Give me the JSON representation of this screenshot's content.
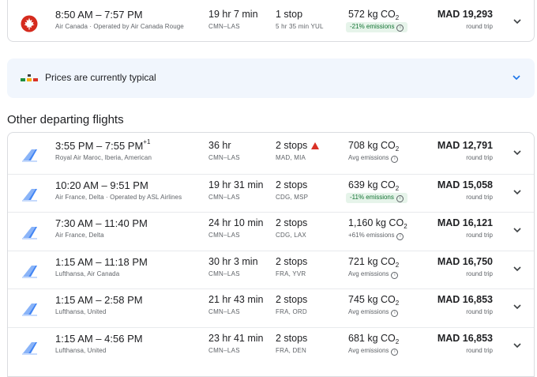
{
  "top_flight": {
    "times": "8:50 AM – 7:57 PM",
    "airline": "Air Canada · Operated by Air Canada Rouge",
    "duration": "19 hr 7 min",
    "route": "CMN–LAS",
    "stops": "1 stop",
    "via": "5 hr 35 min YUL",
    "co2": "572 kg CO",
    "co2_sub": "2",
    "emissions": "-21% emissions",
    "price": "MAD 19,293",
    "trip_type": "round trip",
    "logo_color": "#d52b1e"
  },
  "price_insight": {
    "text_prefix": "Prices are currently ",
    "text_level": "typical"
  },
  "section_title": "Other departing flights",
  "flights": [
    {
      "times": "3:55 PM – 7:55 PM",
      "sup": "+1",
      "airline": "Royal Air Maroc, Iberia, American",
      "duration": "36 hr",
      "route": "CMN–LAS",
      "stops": "2 stops",
      "warning": true,
      "via": "MAD, MIA",
      "co2": "708 kg CO",
      "co2_sub": "2",
      "emissions": "Avg emissions",
      "emissions_type": "avg",
      "price": "MAD 12,791",
      "trip_type": "round trip"
    },
    {
      "times": "10:20 AM – 9:51 PM",
      "sup": "",
      "airline": "Air France, Delta · Operated by ASL Airlines",
      "duration": "19 hr 31 min",
      "route": "CMN–LAS",
      "stops": "2 stops",
      "warning": false,
      "via": "CDG, MSP",
      "co2": "639 kg CO",
      "co2_sub": "2",
      "emissions": "-11% emissions",
      "emissions_type": "low",
      "price": "MAD 15,058",
      "trip_type": "round trip"
    },
    {
      "times": "7:30 AM – 11:40 PM",
      "sup": "",
      "airline": "Air France, Delta",
      "duration": "24 hr 10 min",
      "route": "CMN–LAS",
      "stops": "2 stops",
      "warning": false,
      "via": "CDG, LAX",
      "co2": "1,160 kg CO",
      "co2_sub": "2",
      "emissions": "+61% emissions",
      "emissions_type": "high",
      "price": "MAD 16,121",
      "trip_type": "round trip"
    },
    {
      "times": "1:15 AM – 11:18 PM",
      "sup": "",
      "airline": "Lufthansa, Air Canada",
      "duration": "30 hr 3 min",
      "route": "CMN–LAS",
      "stops": "2 stops",
      "warning": false,
      "via": "FRA, YVR",
      "co2": "721 kg CO",
      "co2_sub": "2",
      "emissions": "Avg emissions",
      "emissions_type": "avg",
      "price": "MAD 16,750",
      "trip_type": "round trip"
    },
    {
      "times": "1:15 AM – 2:58 PM",
      "sup": "",
      "airline": "Lufthansa, United",
      "duration": "21 hr 43 min",
      "route": "CMN–LAS",
      "stops": "2 stops",
      "warning": false,
      "via": "FRA, ORD",
      "co2": "745 kg CO",
      "co2_sub": "2",
      "emissions": "Avg emissions",
      "emissions_type": "avg",
      "price": "MAD 16,853",
      "trip_type": "round trip"
    },
    {
      "times": "1:15 AM – 4:56 PM",
      "sup": "",
      "airline": "Lufthansa, United",
      "duration": "23 hr 41 min",
      "route": "CMN–LAS",
      "stops": "2 stops",
      "warning": false,
      "via": "FRA, DEN",
      "co2": "681 kg CO",
      "co2_sub": "2",
      "emissions": "Avg emissions",
      "emissions_type": "avg",
      "price": "MAD 16,853",
      "trip_type": "round trip"
    }
  ],
  "icons": {
    "multi_airline_logo": "plane-tail-icon",
    "expand": "chevron-down-icon",
    "info": "info-icon",
    "warning": "warning-icon"
  },
  "colors": {
    "accent": "#1a73e8",
    "low_emissions_bg": "#e6f4ea",
    "low_emissions_text": "#137333",
    "warning": "#d93025"
  }
}
